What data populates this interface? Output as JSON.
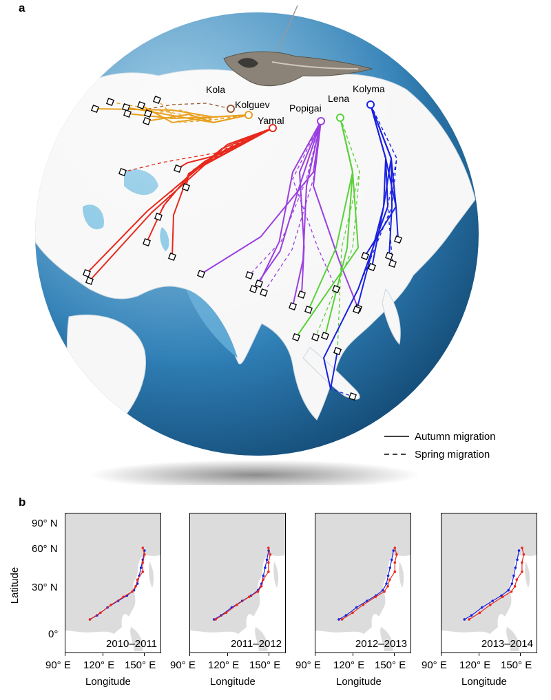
{
  "panel_a": {
    "letter": "a",
    "sites": [
      {
        "name": "Kola",
        "color": "#9a5a3a"
      },
      {
        "name": "Kolguev",
        "color": "#e8a020"
      },
      {
        "name": "Yamal",
        "color": "#e8291c"
      },
      {
        "name": "Popigai",
        "color": "#9b3fe0"
      },
      {
        "name": "Lena",
        "color": "#5ad13a"
      },
      {
        "name": "Kolyma",
        "color": "#1a22e0"
      }
    ],
    "legend": {
      "autumn": "Autumn migration",
      "spring": "Spring migration"
    },
    "bird_image": "peregrine-falcon-photo"
  },
  "panel_b": {
    "letter": "b",
    "ylabel": "Latitude",
    "xlabel": "Longitude",
    "y_ticks": [
      "90° N",
      "60° N",
      "30° N",
      "0°"
    ],
    "x_ticks": [
      "90° E",
      "120° E",
      "150° E"
    ],
    "maps": [
      {
        "season": "2010–2011"
      },
      {
        "season": "2011–2012"
      },
      {
        "season": "2012–2013"
      },
      {
        "season": "2013–2014"
      }
    ],
    "track_colors": {
      "autumn": "#1a22e0",
      "spring": "#e8291c"
    }
  }
}
